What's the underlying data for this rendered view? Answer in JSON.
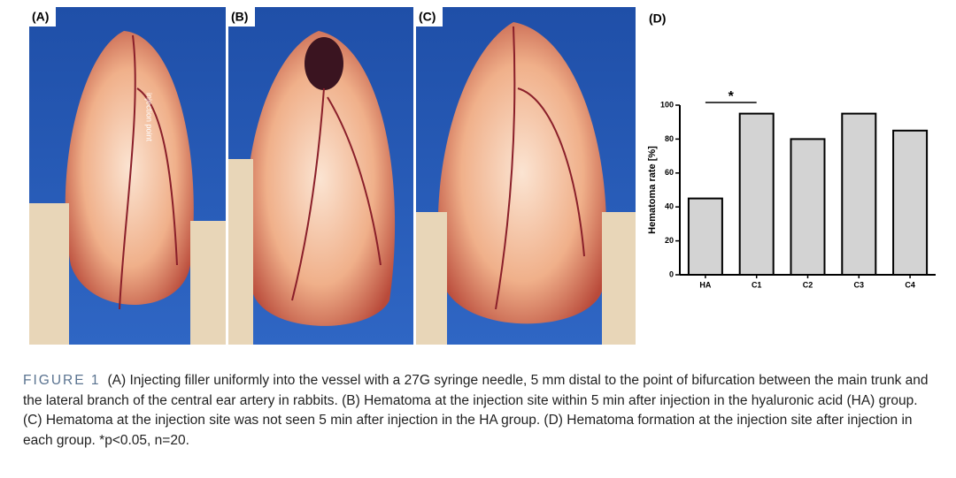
{
  "panels": [
    {
      "label": "(A)",
      "note": "injection point"
    },
    {
      "label": "(B)"
    },
    {
      "label": "(C)"
    }
  ],
  "chart_data": {
    "type": "bar",
    "panel_label": "(D)",
    "y_label": "Hematoma rate [%]",
    "categories": [
      "HA",
      "C1",
      "C2",
      "C3",
      "C4"
    ],
    "values": [
      45,
      95,
      80,
      95,
      85
    ],
    "color": "#d3d3d3",
    "ylim": [
      0,
      100
    ],
    "yticks": [
      0,
      20,
      40,
      60,
      80,
      100
    ],
    "annotation": "*"
  },
  "caption": {
    "label": "FIGURE 1",
    "text": "(A) Injecting filler uniformly into the vessel with a 27G syringe needle, 5 mm distal to the point of bifurcation between the main trunk and the lateral branch of the central ear artery in rabbits. (B) Hematoma at the injection site within 5 min after injection in the hyaluronic acid (HA) group. (C) Hematoma at the injection site was not seen 5 min after injection in the HA group. (D) Hematoma formation at the injection site after injection in each group. *p<0.05, n=20."
  }
}
